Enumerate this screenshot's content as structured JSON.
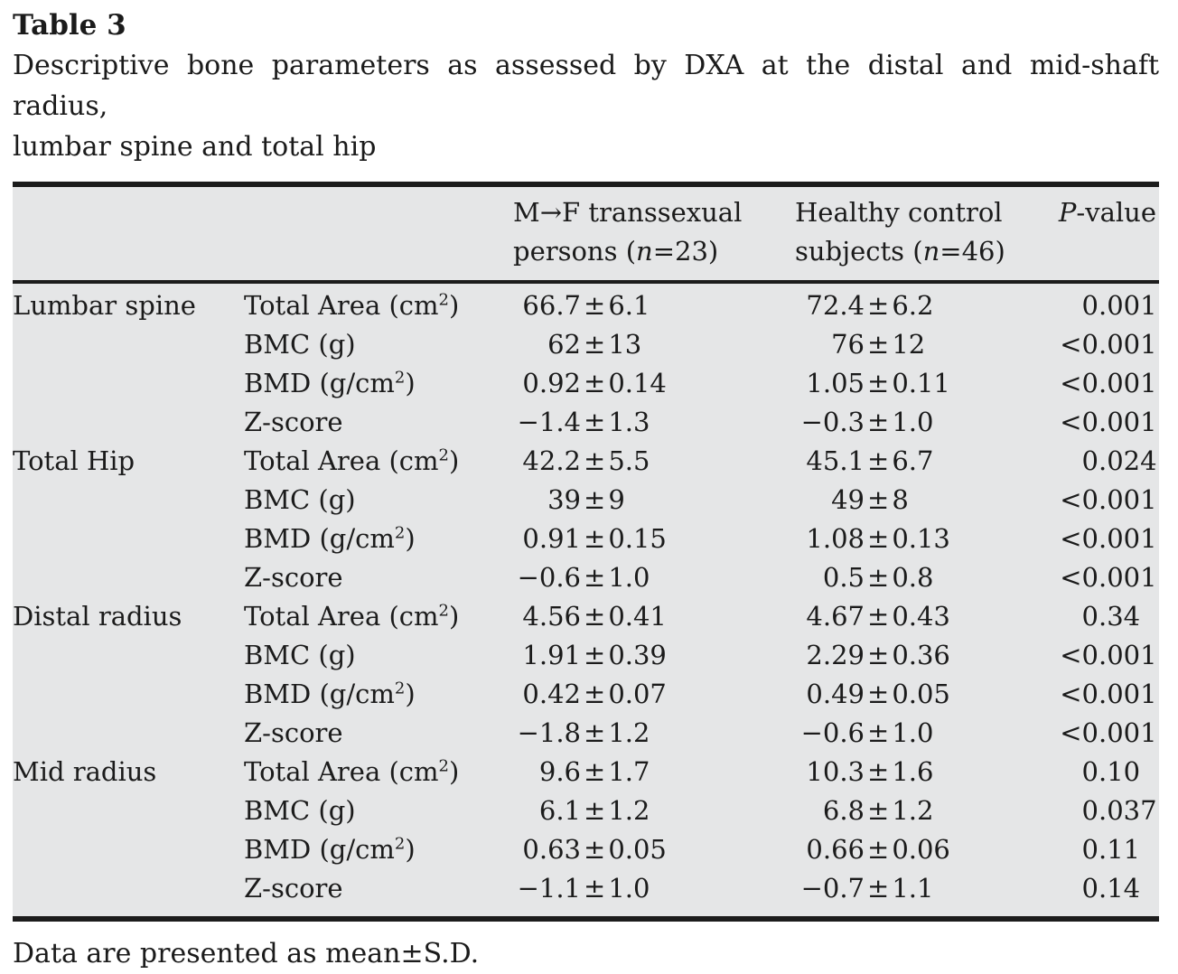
{
  "title": "Table 3",
  "caption_line1": "Descriptive bone parameters as assessed by DXA at the distal and mid-shaft radius,",
  "caption_line2": "lumbar spine and total hip",
  "pm": "±",
  "header": {
    "col_mf_line1": "M→F transsexual",
    "col_mf_line2_pre": "persons (",
    "col_mf_n": "n",
    "col_mf_line2_post": "=23)",
    "col_hc_line1": "Healthy control",
    "col_hc_line2_pre": "subjects (",
    "col_hc_n": "n",
    "col_hc_line2_post": "=46)",
    "col_p_italic": "P",
    "col_p_rest": "-value"
  },
  "rows": [
    {
      "group": "Lumbar spine",
      "param": "Total Area (cm",
      "sup": "2",
      "pend": ")",
      "m": "66.7",
      "msd": "6.1",
      "h": "72.4",
      "hsd": "6.2",
      "pp": "0",
      "pd": ".001"
    },
    {
      "group": "",
      "param": "BMC (g)",
      "sup": "",
      "pend": "",
      "m": "62",
      "msd": "13",
      "h": "76",
      "hsd": "12",
      "pp": "<0",
      "pd": ".001"
    },
    {
      "group": "",
      "param": "BMD (g/cm",
      "sup": "2",
      "pend": ")",
      "m": "0.92",
      "msd": "0.14",
      "h": "1.05",
      "hsd": "0.11",
      "pp": "<0",
      "pd": ".001"
    },
    {
      "group": "",
      "param": "Z-score",
      "sup": "",
      "pend": "",
      "m": "−1.4",
      "msd": "1.3",
      "h": "−0.3",
      "hsd": "1.0",
      "pp": "<0",
      "pd": ".001"
    },
    {
      "group": "Total Hip",
      "param": "Total Area (cm",
      "sup": "2",
      "pend": ")",
      "m": "42.2",
      "msd": "5.5",
      "h": "45.1",
      "hsd": "6.7",
      "pp": "0",
      "pd": ".024"
    },
    {
      "group": "",
      "param": "BMC (g)",
      "sup": "",
      "pend": "",
      "m": "39",
      "msd": "9",
      "h": "49",
      "hsd": "8",
      "pp": "<0",
      "pd": ".001"
    },
    {
      "group": "",
      "param": "BMD (g/cm",
      "sup": "2",
      "pend": ")",
      "m": "0.91",
      "msd": "0.15",
      "h": "1.08",
      "hsd": "0.13",
      "pp": "<0",
      "pd": ".001"
    },
    {
      "group": "",
      "param": "Z-score",
      "sup": "",
      "pend": "",
      "m": "−0.6",
      "msd": "1.0",
      "h": "0.5",
      "hsd": "0.8",
      "pp": "<0",
      "pd": ".001"
    },
    {
      "group": "Distal radius",
      "param": "Total Area (cm",
      "sup": "2",
      "pend": ")",
      "m": "4.56",
      "msd": "0.41",
      "h": "4.67",
      "hsd": "0.43",
      "pp": "0",
      "pd": ".34"
    },
    {
      "group": "",
      "param": "BMC (g)",
      "sup": "",
      "pend": "",
      "m": "1.91",
      "msd": "0.39",
      "h": "2.29",
      "hsd": "0.36",
      "pp": "<0",
      "pd": ".001"
    },
    {
      "group": "",
      "param": "BMD (g/cm",
      "sup": "2",
      "pend": ")",
      "m": "0.42",
      "msd": "0.07",
      "h": "0.49",
      "hsd": "0.05",
      "pp": "<0",
      "pd": ".001"
    },
    {
      "group": "",
      "param": "Z-score",
      "sup": "",
      "pend": "",
      "m": "−1.8",
      "msd": "1.2",
      "h": "−0.6",
      "hsd": "1.0",
      "pp": "<0",
      "pd": ".001"
    },
    {
      "group": "Mid radius",
      "param": "Total Area (cm",
      "sup": "2",
      "pend": ")",
      "m": "9.6",
      "msd": "1.7",
      "h": "10.3",
      "hsd": "1.6",
      "pp": "0",
      "pd": ".10"
    },
    {
      "group": "",
      "param": "BMC (g)",
      "sup": "",
      "pend": "",
      "m": "6.1",
      "msd": "1.2",
      "h": "6.8",
      "hsd": "1.2",
      "pp": "0",
      "pd": ".037"
    },
    {
      "group": "",
      "param": "BMD (g/cm",
      "sup": "2",
      "pend": ")",
      "m": "0.63",
      "msd": "0.05",
      "h": "0.66",
      "hsd": "0.06",
      "pp": "0",
      "pd": ".11"
    },
    {
      "group": "",
      "param": "Z-score",
      "sup": "",
      "pend": "",
      "m": "−1.1",
      "msd": "1.0",
      "h": "−0.7",
      "hsd": "1.1",
      "pp": "0",
      "pd": ".14"
    }
  ],
  "footnote": "Data are presented as mean±S.D.",
  "colors": {
    "table_background": "#e5e6e7",
    "rule": "#1c1c1c",
    "text": "#1b1b1b",
    "page_background": "#ffffff"
  }
}
